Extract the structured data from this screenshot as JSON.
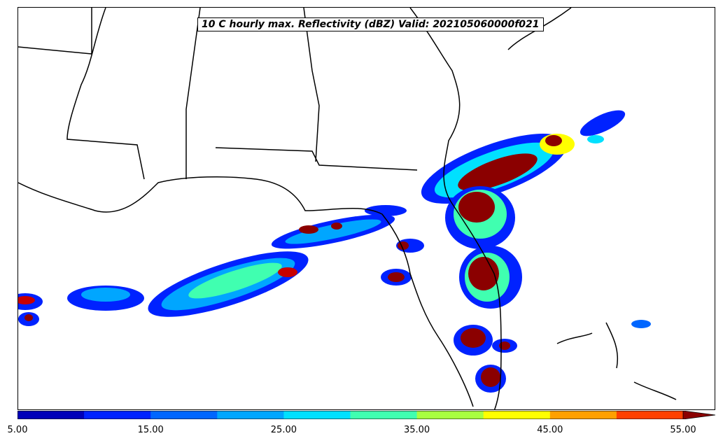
{
  "title": "10 C hourly max. Reflectivity (dBZ) Valid: 202105060000f021",
  "colorbar": {
    "levels": [
      5,
      10,
      15,
      20,
      25,
      30,
      35,
      40,
      45,
      50,
      55
    ],
    "colors": [
      "#0000b8",
      "#0022ff",
      "#0066ff",
      "#00a6ff",
      "#00e0ff",
      "#40ffb0",
      "#a8ff40",
      "#ffff00",
      "#ffa000",
      "#ff4000",
      "#c80000",
      "#8b0000"
    ],
    "tick_values": [
      "5.00",
      "15.00",
      "25.00",
      "35.00",
      "45.00",
      "55.00"
    ],
    "extend": "max"
  },
  "map": {
    "region": "southeastern United States and Gulf of Mexico",
    "features": [
      "coastlines",
      "state borders"
    ]
  }
}
